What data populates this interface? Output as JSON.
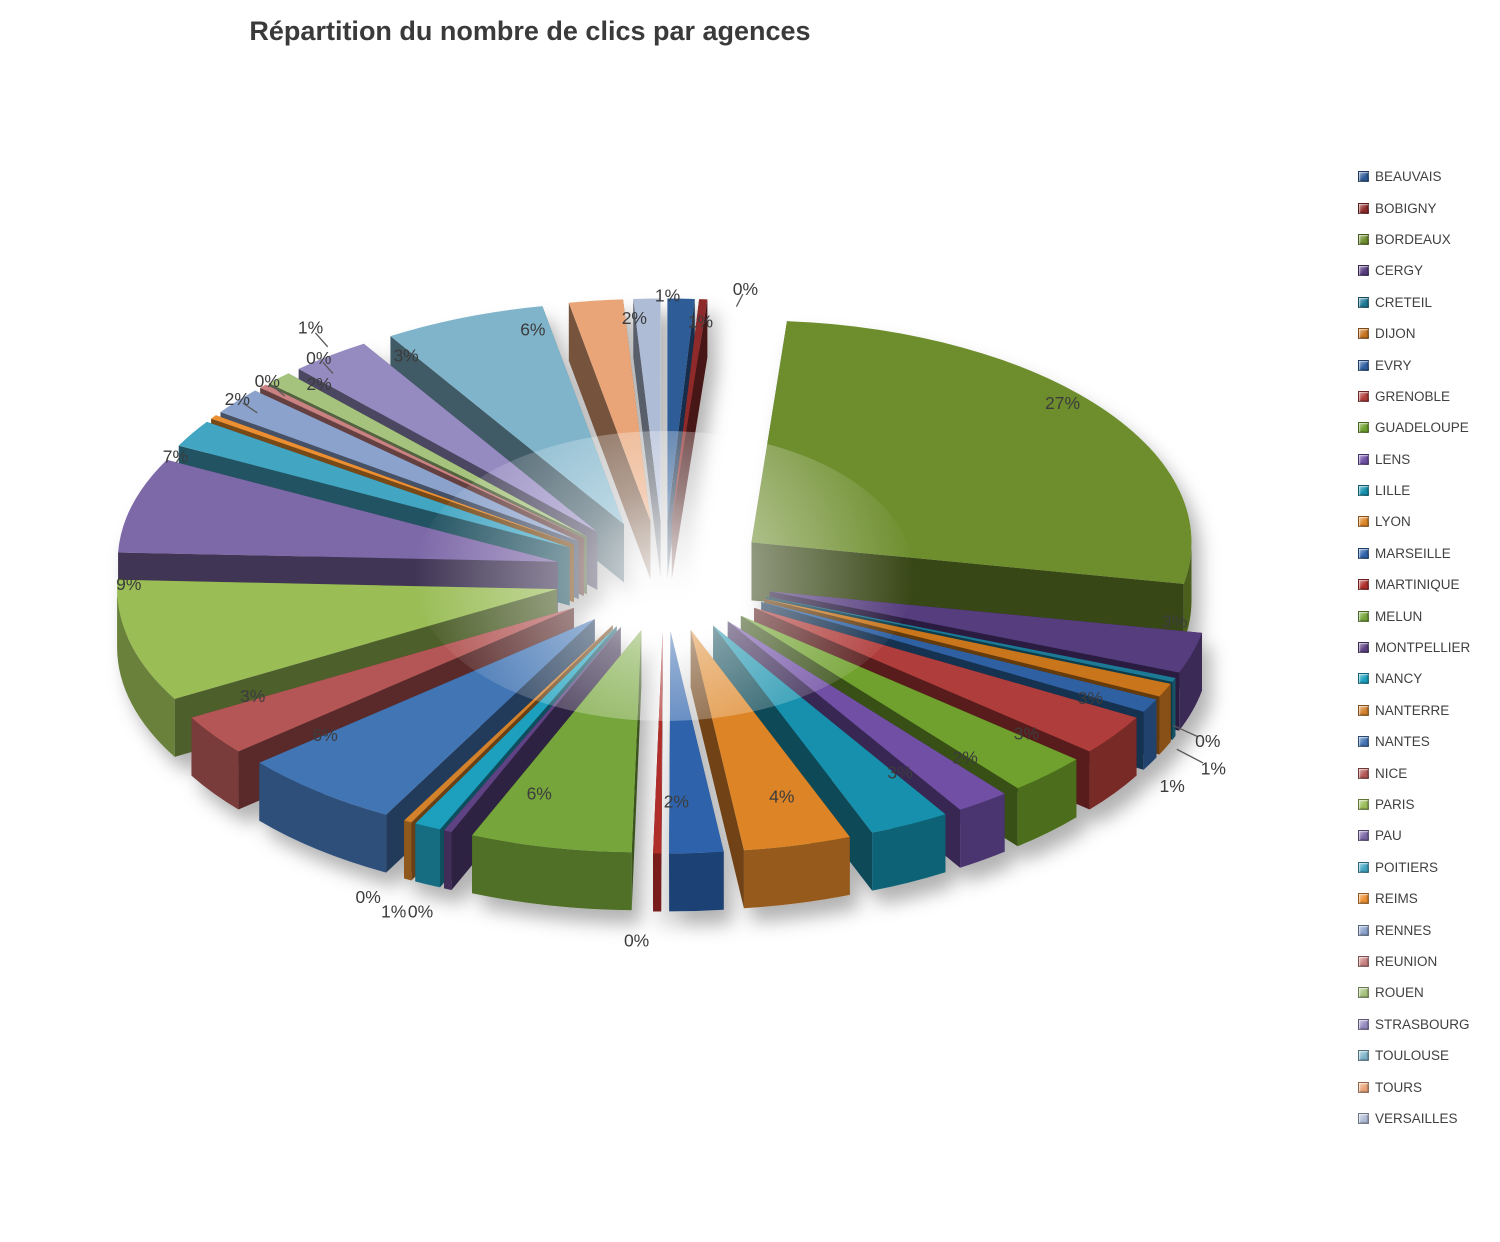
{
  "chart_data": {
    "type": "pie",
    "style": "3d-exploded",
    "title": "Répartition du nombre de clics par agences",
    "legend_position": "right",
    "background": "#ffffff",
    "label_color": "#3c3c3c",
    "categories": [
      "BEAUVAIS",
      "BOBIGNY",
      "BORDEAUX",
      "CERGY",
      "CRETEIL",
      "DIJON",
      "EVRY",
      "GRENOBLE",
      "GUADELOUPE",
      "LENS",
      "LILLE",
      "LYON",
      "MARSEILLE",
      "MARTINIQUE",
      "MELUN",
      "MONTPELLIER",
      "NANCY",
      "NANTERRE",
      "NANTES",
      "NICE",
      "PARIS",
      "PAU",
      "POITIERS",
      "REIMS",
      "RENNES",
      "REUNION",
      "ROUEN",
      "STRASBOURG",
      "TOULOUSE",
      "TOURS",
      "VERSAILLES"
    ],
    "values": [
      1,
      0.3,
      27,
      3,
      0.3,
      1,
      1,
      3,
      3,
      2,
      3,
      4,
      2,
      0.3,
      6,
      0.3,
      1,
      0.3,
      6,
      3,
      9,
      7,
      2,
      0.3,
      2,
      0.3,
      1,
      3,
      6,
      2,
      1
    ],
    "percent_labels": [
      "1%",
      "0%",
      "27%",
      "3%",
      "0%",
      "1%",
      "1%",
      "3%",
      "3%",
      "2%",
      "3%",
      "4%",
      "2%",
      "0%",
      "6%",
      "0%",
      "1%",
      "0%",
      "6%",
      "3%",
      "9%",
      "7%",
      "2%",
      "0%",
      "2%",
      "0%",
      "1%",
      "3%",
      "6%",
      "2%",
      "1%"
    ],
    "colors": [
      "#2E5B96",
      "#8E2C2B",
      "#6E8E2E",
      "#573C7E",
      "#1F7A96",
      "#C8741E",
      "#2F61A2",
      "#AF3C3A",
      "#6FA02E",
      "#6F50A4",
      "#1590AC",
      "#DD8527",
      "#2D63AC",
      "#B02E2B",
      "#76A53A",
      "#5E4383",
      "#1BA0BE",
      "#D3812C",
      "#4374B4",
      "#B35755",
      "#9ABD57",
      "#7D68A8",
      "#42A6C3",
      "#EC8F31",
      "#8BA2CC",
      "#C98281",
      "#A6C37D",
      "#968BC1",
      "#7FB4CB",
      "#E9A578",
      "#AFBCD6"
    ],
    "label_placement": [
      "in",
      "leader",
      "in",
      "in",
      "leader",
      "leader",
      "out",
      "in",
      "in",
      "in",
      "in",
      "in",
      "in",
      "out",
      "in",
      "out",
      "out",
      "out",
      "in",
      "in",
      "in",
      "in",
      "leader",
      "leader",
      "in",
      "leader",
      "leader",
      "in",
      "in",
      "in",
      "out"
    ]
  }
}
